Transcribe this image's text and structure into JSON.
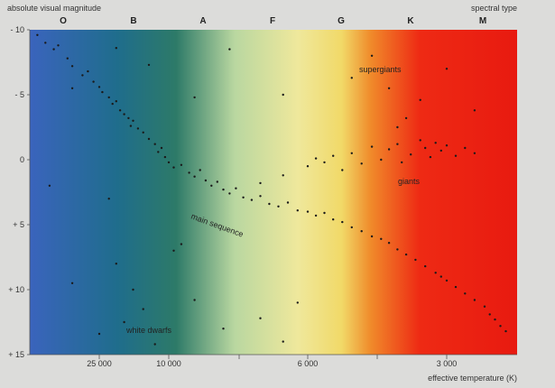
{
  "chart_data": {
    "type": "scatter",
    "title": "",
    "ylabel": "absolute visual magnitude",
    "xlabel": "effective temperature (K)",
    "top_axis_label": "spectral type",
    "spectral_types": [
      "O",
      "B",
      "A",
      "F",
      "G",
      "K",
      "M"
    ],
    "ylim": [
      -10,
      15
    ],
    "y_inverted": true,
    "y_ticks": [
      "- 10",
      "- 5",
      "0",
      "+ 5",
      "+ 10",
      "+ 15"
    ],
    "x_ticks": [
      "25 000",
      "10 000",
      "",
      "6 000",
      "",
      "3 000"
    ],
    "x_direction": "temperature decreasing to the right",
    "background": "spectral colour gradient from blue (hot) through green and yellow to red (cool)",
    "gradient_colors": [
      "#3a64bd",
      "#1f6d8c",
      "#2d7a68",
      "#b9d7a0",
      "#efe89c",
      "#f1d968",
      "#f08a2a",
      "#ee2a14",
      "#e81a10"
    ],
    "point_color": "#1a1a1a",
    "region_labels": {
      "supergiants": "supergiants",
      "giants": "giants",
      "main_sequence": "main sequence",
      "white_dwarfs": "white dwarfs"
    },
    "points": [
      [
        38000,
        -9.6
      ],
      [
        36000,
        -9
      ],
      [
        34000,
        -8.5
      ],
      [
        33000,
        -8.8
      ],
      [
        31000,
        -7.8
      ],
      [
        30000,
        -7.2
      ],
      [
        28000,
        -6.5
      ],
      [
        27000,
        -6.8
      ],
      [
        26000,
        -6
      ],
      [
        25000,
        -5.6
      ],
      [
        24000,
        -5.2
      ],
      [
        22000,
        -4.8
      ],
      [
        21000,
        -4.3
      ],
      [
        20000,
        -4.5
      ],
      [
        19000,
        -3.8
      ],
      [
        18000,
        -3.5
      ],
      [
        17000,
        -3.2
      ],
      [
        16500,
        -2.6
      ],
      [
        16000,
        -3
      ],
      [
        15000,
        -2.4
      ],
      [
        14000,
        -2.1
      ],
      [
        13000,
        -1.6
      ],
      [
        12000,
        -1.2
      ],
      [
        11500,
        -0.6
      ],
      [
        11000,
        -0.9
      ],
      [
        10500,
        -0.2
      ],
      [
        10000,
        0.2
      ],
      [
        9800,
        0.6
      ],
      [
        9500,
        0.4
      ],
      [
        9200,
        1
      ],
      [
        9000,
        1.3
      ],
      [
        8800,
        0.8
      ],
      [
        8600,
        1.6
      ],
      [
        8400,
        2
      ],
      [
        8200,
        1.7
      ],
      [
        8000,
        2.3
      ],
      [
        7800,
        2.6
      ],
      [
        7600,
        2.2
      ],
      [
        7400,
        2.9
      ],
      [
        7200,
        3.1
      ],
      [
        7000,
        2.8
      ],
      [
        6800,
        3.4
      ],
      [
        6600,
        3.6
      ],
      [
        6400,
        3.3
      ],
      [
        6200,
        3.9
      ],
      [
        6000,
        4
      ],
      [
        5800,
        4.3
      ],
      [
        5600,
        4.1
      ],
      [
        5400,
        4.6
      ],
      [
        5200,
        4.8
      ],
      [
        5000,
        5.2
      ],
      [
        4800,
        5.5
      ],
      [
        4600,
        5.9
      ],
      [
        4400,
        6.1
      ],
      [
        4200,
        6.4
      ],
      [
        4000,
        6.9
      ],
      [
        3800,
        7.3
      ],
      [
        3600,
        7.7
      ],
      [
        3400,
        8.2
      ],
      [
        3200,
        8.7
      ],
      [
        3100,
        9
      ],
      [
        3000,
        9.3
      ],
      [
        2900,
        9.8
      ],
      [
        2800,
        10.3
      ],
      [
        2700,
        10.8
      ],
      [
        2600,
        11.3
      ],
      [
        2550,
        11.9
      ],
      [
        2500,
        12.3
      ],
      [
        2450,
        12.8
      ],
      [
        2400,
        13.2
      ],
      [
        6000,
        0.5
      ],
      [
        5600,
        0.2
      ],
      [
        5400,
        -0.3
      ],
      [
        5200,
        0.8
      ],
      [
        5000,
        -0.5
      ],
      [
        4800,
        0.3
      ],
      [
        4600,
        -1
      ],
      [
        4400,
        0
      ],
      [
        4200,
        -0.8
      ],
      [
        4000,
        -1.2
      ],
      [
        3900,
        0.2
      ],
      [
        3700,
        -0.4
      ],
      [
        3500,
        -1.5
      ],
      [
        3400,
        -0.9
      ],
      [
        3300,
        -0.2
      ],
      [
        3200,
        -1.3
      ],
      [
        3100,
        -0.7
      ],
      [
        3000,
        -1.1
      ],
      [
        2900,
        -0.3
      ],
      [
        2800,
        -0.9
      ],
      [
        2700,
        -0.5
      ],
      [
        6500,
        1.2
      ],
      [
        7000,
        1.8
      ],
      [
        5800,
        -0.1
      ],
      [
        5000,
        -6.3
      ],
      [
        4200,
        -5.5
      ],
      [
        3500,
        -4.6
      ],
      [
        3000,
        -7
      ],
      [
        2700,
        -3.8
      ],
      [
        4600,
        -8
      ],
      [
        3800,
        -3.2
      ],
      [
        6500,
        -5
      ],
      [
        9000,
        -4.8
      ],
      [
        7800,
        -8.5
      ],
      [
        13000,
        -7.3
      ],
      [
        20000,
        -8.6
      ],
      [
        30000,
        -5.5
      ],
      [
        4000,
        -2.5
      ],
      [
        18000,
        12.5
      ],
      [
        14000,
        11.5
      ],
      [
        9000,
        10.8
      ],
      [
        25000,
        13.4
      ],
      [
        12000,
        14.2
      ],
      [
        8000,
        13
      ],
      [
        7000,
        12.2
      ],
      [
        6500,
        14
      ],
      [
        20000,
        8
      ],
      [
        16000,
        10
      ],
      [
        35000,
        2
      ],
      [
        30000,
        9.5
      ],
      [
        9800,
        7
      ],
      [
        9500,
        6.5
      ],
      [
        22000,
        3
      ],
      [
        6200,
        11
      ]
    ]
  }
}
